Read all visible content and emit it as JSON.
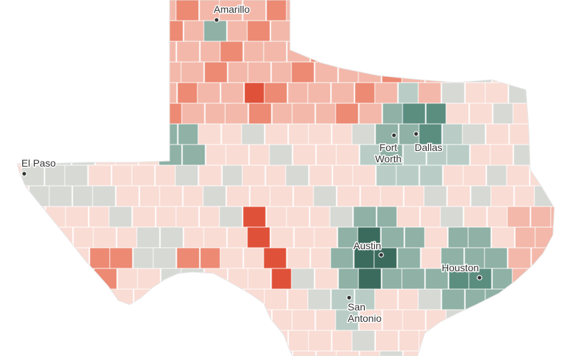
{
  "map": {
    "region": "Texas",
    "palette": {
      "decline_strong": "#e0513a",
      "decline_medium": "#ec8a74",
      "decline_light": "#f3b8aa",
      "decline_faint": "#f9dcd4",
      "neutral": "#d7d9d4",
      "growth_light": "#b9cdc6",
      "growth_medium": "#8fb1a6",
      "growth_strong": "#5c8e80",
      "growth_darkest": "#3b6b5d"
    },
    "cities": [
      {
        "name": "Amarillo",
        "lines": [
          "Amarillo"
        ]
      },
      {
        "name": "El Paso",
        "lines": [
          "El Paso"
        ]
      },
      {
        "name": "Fort Worth",
        "lines": [
          "Fort",
          "Worth"
        ]
      },
      {
        "name": "Dallas",
        "lines": [
          "Dallas"
        ]
      },
      {
        "name": "Austin",
        "lines": [
          "Austin"
        ]
      },
      {
        "name": "Houston",
        "lines": [
          "Houston"
        ]
      },
      {
        "name": "San Antonio",
        "lines": [
          "San",
          "Antonio"
        ]
      }
    ]
  }
}
